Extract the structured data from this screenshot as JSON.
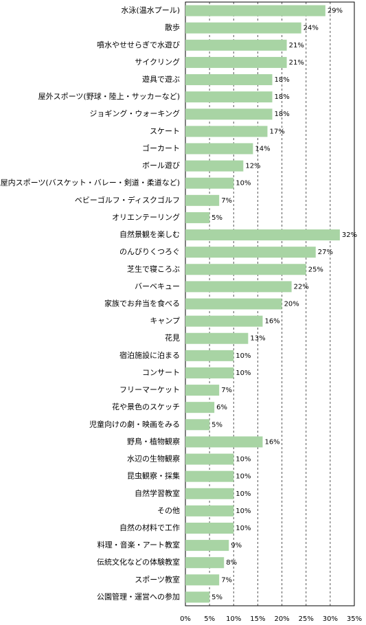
{
  "chart_data": {
    "type": "bar",
    "orientation": "horizontal",
    "categories": [
      "水泳(温水プール)",
      "散歩",
      "噴水やせせらぎで水遊び",
      "サイクリング",
      "遊具で遊ぶ",
      "屋外スポーツ(野球・陸上・サッカーなど)",
      "ジョギング・ウォーキング",
      "スケート",
      "ゴーカート",
      "ボール遊び",
      "屋内スポーツ(バスケット・バレー・剣道・柔道など)",
      "ベビーゴルフ・ディスクゴルフ",
      "オリエンテーリング",
      "自然景観を楽しむ",
      "のんびりくつろぐ",
      "芝生で寝ころぶ",
      "バーベキュー",
      "家族でお弁当を食べる",
      "キャンプ",
      "花見",
      "宿泊施設に泊まる",
      "コンサート",
      "フリーマーケット",
      "花や景色のスケッチ",
      "児童向けの劇・映画をみる",
      "野鳥・植物観察",
      "水辺の生物観察",
      "昆虫観察・採集",
      "自然学習教室",
      "その他",
      "自然の材料で工作",
      "料理・音楽・アート教室",
      "伝統文化などの体験教室",
      "スポーツ教室",
      "公園管理・運営への参加"
    ],
    "values": [
      29,
      24,
      21,
      21,
      18,
      18,
      18,
      17,
      14,
      12,
      10,
      7,
      5,
      32,
      27,
      25,
      22,
      20,
      16,
      13,
      10,
      10,
      7,
      6,
      5,
      16,
      10,
      10,
      10,
      10,
      10,
      9,
      8,
      7,
      5
    ],
    "value_labels": [
      "29%",
      "24%",
      "21%",
      "21%",
      "18%",
      "18%",
      "18%",
      "17%",
      "14%",
      "12%",
      "10%",
      "7%",
      "5%",
      "32%",
      "27%",
      "25%",
      "22%",
      "20%",
      "16%",
      "13%",
      "10%",
      "10%",
      "7%",
      "6%",
      "5%",
      "16%",
      "10%",
      "10%",
      "10%",
      "10%",
      "10%",
      "9%",
      "8%",
      "7%",
      "5%"
    ],
    "color": "#a8d4a4",
    "xlim": [
      0,
      35
    ],
    "xticks": [
      {
        "value": 0,
        "label": "0%"
      },
      {
        "value": 5,
        "label": "5%"
      },
      {
        "value": 10,
        "label": "10%"
      },
      {
        "value": 15,
        "label": "15%"
      },
      {
        "value": 20,
        "label": "20%"
      },
      {
        "value": 25,
        "label": "25%"
      },
      {
        "value": 30,
        "label": "30%"
      },
      {
        "value": 35,
        "label": "35%"
      }
    ],
    "grid": true
  }
}
